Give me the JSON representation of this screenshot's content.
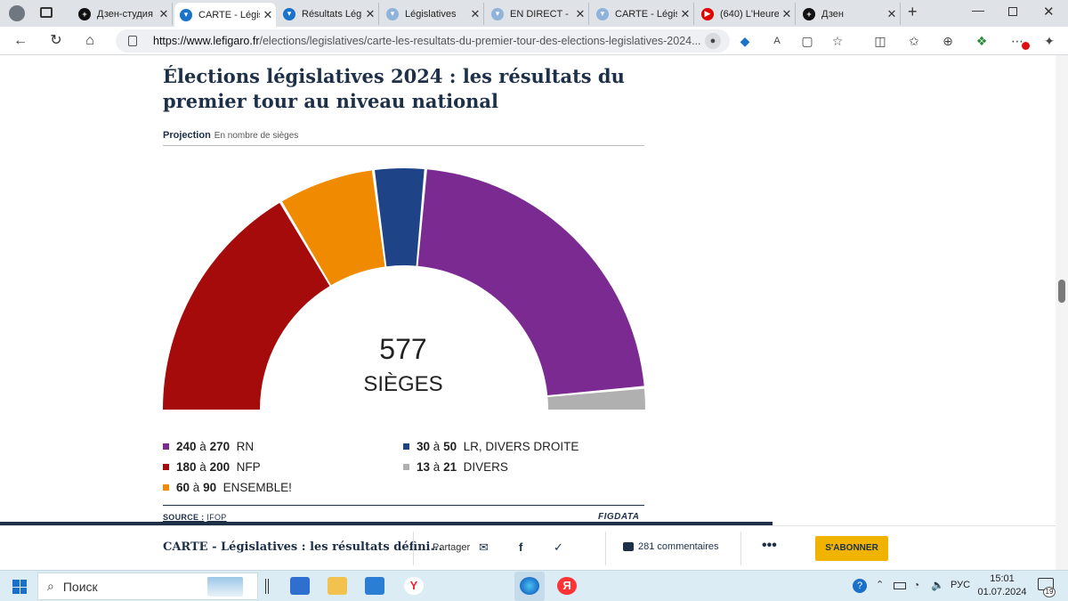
{
  "browser": {
    "tabs": [
      {
        "title": "Дзен-студия",
        "icon": "dzen-icon",
        "color": "#111111"
      },
      {
        "title": "CARTE - Légis",
        "icon": "figaro-icon",
        "color": "#1a73c9",
        "active": true
      },
      {
        "title": "Résultats Légis",
        "icon": "figaro-icon",
        "color": "#1a73c9"
      },
      {
        "title": "Législatives",
        "icon": "figaro-icon",
        "color": "#8fb3d9"
      },
      {
        "title": "EN DIRECT -",
        "icon": "figaro-icon",
        "color": "#8fb3d9"
      },
      {
        "title": "CARTE - Légis",
        "icon": "figaro-icon",
        "color": "#8fb3d9"
      },
      {
        "title": "(640) L'Heure",
        "icon": "youtube-icon",
        "color": "#e00000"
      },
      {
        "title": "Дзен",
        "icon": "dzen-icon",
        "color": "#111111"
      }
    ],
    "url": "https://www.lefigaro.fr/elections/legislatives/carte-les-resultats-du-premier-tour-des-elections-legislatives-2024...",
    "url_domain": "https://www.lefigaro.fr",
    "url_rest": "/elections/legislatives/carte-les-resultats-du-premier-tour-des-elections-legislatives-2024..."
  },
  "article": {
    "title": "Élections législatives 2024 : les résultats du premier tour au niveau national",
    "subtitle": "Projection",
    "subtitle_note": "En nombre de sièges",
    "total_seats": "577",
    "total_label": "SIÈGES",
    "source_label": "SOURCE :",
    "source_value": "IFOP",
    "brand": "FIGDATA"
  },
  "chart_data": {
    "type": "hemicycle",
    "total": 577,
    "series": [
      {
        "name": "NFP",
        "range": "180 à 200",
        "low": 180,
        "high": 200,
        "color": "#a50b0b"
      },
      {
        "name": "ENSEMBLE!",
        "range": "60 à 90",
        "low": 60,
        "high": 90,
        "color": "#f08a00"
      },
      {
        "name": "LR, DIVERS DROITE",
        "range": "30 à 50",
        "low": 30,
        "high": 50,
        "color": "#1e4387"
      },
      {
        "name": "RN",
        "range": "240 à 270",
        "low": 240,
        "high": 270,
        "color": "#7b2a92"
      },
      {
        "name": "DIVERS",
        "range": "13 à 21",
        "low": 13,
        "high": 21,
        "color": "#b0b0b0"
      }
    ]
  },
  "legend": [
    {
      "low": "240",
      "high": "270",
      "name": "RN",
      "color": "#7b2a92"
    },
    {
      "low": "180",
      "high": "200",
      "name": "NFP",
      "color": "#a50b0b"
    },
    {
      "low": "60",
      "high": "90",
      "name": "ENSEMBLE!",
      "color": "#f08a00"
    },
    {
      "low": "30",
      "high": "50",
      "name": "LR, DIVERS DROITE",
      "color": "#1e4387"
    },
    {
      "low": "13",
      "high": "21",
      "name": "DIVERS",
      "color": "#b0b0b0"
    }
  ],
  "range_word": "à",
  "bottom_bar": {
    "title": "CARTE - Législatives : les résultats défini...",
    "share_label": "Partager",
    "comments_label": "281 commentaires",
    "subscribe_label": "S'ABONNER"
  },
  "taskbar": {
    "search_placeholder": "Поиск",
    "lang": "РУС",
    "time": "15:01",
    "date": "01.07.2024",
    "notif_count": "19"
  }
}
